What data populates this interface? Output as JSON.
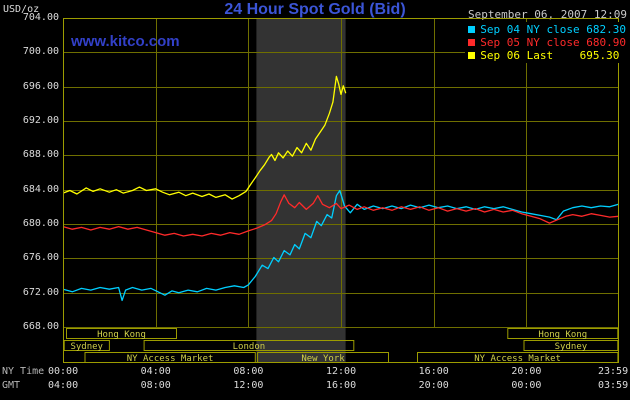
{
  "header": {
    "units": "USD/oz",
    "title": "24 Hour Spot Gold (Bid)",
    "datetime": "September 06, 2007 12:09"
  },
  "watermark": "www.kitco.com",
  "axis": {
    "ny_time_label": "NY Time",
    "gmt_label": "GMT",
    "y_ticks": [
      "704.00",
      "700.00",
      "696.00",
      "692.00",
      "688.00",
      "684.00",
      "680.00",
      "676.00",
      "672.00",
      "668.00"
    ],
    "ny_ticks": [
      "00:00",
      "04:00",
      "08:00",
      "12:00",
      "16:00",
      "20:00",
      "23:59"
    ],
    "gmt_ticks": [
      "04:00",
      "08:00",
      "12:00",
      "16:00",
      "20:00",
      "00:00",
      "03:59"
    ]
  },
  "legend": [
    {
      "id": "sep04",
      "label": "Sep 04 NY close 682.30",
      "color": "#00CFFF"
    },
    {
      "id": "sep05",
      "label": "Sep 05 NY close 680.90",
      "color": "#FF2A2A"
    },
    {
      "id": "sep06",
      "label": "Sep 06 Last    695.30",
      "color": "#FFFF00"
    }
  ],
  "sessions": {
    "rows": [
      {
        "row": 0,
        "label": "Hong Kong",
        "start": 0.15,
        "end": 4.9
      },
      {
        "row": 0,
        "label": "Hong Kong",
        "start": 19.2,
        "end": 23.95
      },
      {
        "row": 1,
        "label": "Sydney",
        "start": 0.05,
        "end": 2.0
      },
      {
        "row": 1,
        "label": "London",
        "start": 3.5,
        "end": 12.55
      },
      {
        "row": 1,
        "label": "Sydney",
        "start": 19.9,
        "end": 23.95
      },
      {
        "row": 2,
        "label": "NY Access Market",
        "start": 0.95,
        "end": 8.3
      },
      {
        "row": 2,
        "label": "New York",
        "start": 8.4,
        "end": 14.05
      },
      {
        "row": 2,
        "label": "NY Access Market",
        "start": 15.3,
        "end": 23.95
      }
    ]
  },
  "colors": {
    "background": "#000000",
    "title_blue": "#3B55D6",
    "watermark_blue": "#3240C8",
    "grid_olive": "#6F6F00",
    "border_olive": "#9C9C00",
    "session_text": "#CFCF4A",
    "axis_text": "#DCDCDC",
    "muted_text": "#B6B6B6",
    "highlight_band": "#333333"
  },
  "chart_data": {
    "type": "line",
    "title": "24 Hour Spot Gold (Bid)",
    "xlabel": "NY Time",
    "ylabel": "USD/oz",
    "xlim_hours": [
      0,
      24
    ],
    "ylim": [
      668,
      704
    ],
    "y_gridlines": [
      704,
      700,
      696,
      692,
      688,
      684,
      680,
      676,
      672,
      668
    ],
    "x_gridlines_hours": [
      4,
      8,
      12,
      16,
      20
    ],
    "highlight_band_hours": [
      8.35,
      12.2
    ],
    "legend_position": "top-right",
    "series": [
      {
        "id": "sep04",
        "name": "Sep 04 NY close 682.30",
        "color": "#00CFFF",
        "close": 682.3,
        "points": [
          [
            0,
            672.4
          ],
          [
            0.4,
            672.1
          ],
          [
            0.8,
            672.5
          ],
          [
            1.2,
            672.3
          ],
          [
            1.6,
            672.6
          ],
          [
            2,
            672.4
          ],
          [
            2.4,
            672.6
          ],
          [
            2.55,
            671.1
          ],
          [
            2.7,
            672.3
          ],
          [
            3,
            672.6
          ],
          [
            3.4,
            672.3
          ],
          [
            3.8,
            672.5
          ],
          [
            4.1,
            672.1
          ],
          [
            4.4,
            671.7
          ],
          [
            4.7,
            672.2
          ],
          [
            5,
            672
          ],
          [
            5.4,
            672.3
          ],
          [
            5.8,
            672.1
          ],
          [
            6.2,
            672.5
          ],
          [
            6.6,
            672.3
          ],
          [
            7,
            672.6
          ],
          [
            7.4,
            672.8
          ],
          [
            7.8,
            672.6
          ],
          [
            8,
            672.9
          ],
          [
            8.3,
            673.9
          ],
          [
            8.6,
            675.2
          ],
          [
            8.85,
            674.8
          ],
          [
            9.1,
            676.1
          ],
          [
            9.3,
            675.6
          ],
          [
            9.55,
            676.9
          ],
          [
            9.8,
            676.4
          ],
          [
            10,
            677.6
          ],
          [
            10.2,
            677.1
          ],
          [
            10.45,
            678.9
          ],
          [
            10.7,
            678.4
          ],
          [
            10.95,
            680.3
          ],
          [
            11.15,
            679.8
          ],
          [
            11.4,
            681.1
          ],
          [
            11.6,
            680.7
          ],
          [
            11.8,
            683.3
          ],
          [
            11.95,
            683.9
          ],
          [
            12.15,
            682.1
          ],
          [
            12.4,
            681.3
          ],
          [
            12.7,
            682.3
          ],
          [
            13,
            681.7
          ],
          [
            13.4,
            682.1
          ],
          [
            13.8,
            681.8
          ],
          [
            14.2,
            682.1
          ],
          [
            14.6,
            681.8
          ],
          [
            15,
            682.2
          ],
          [
            15.4,
            681.9
          ],
          [
            15.8,
            682.2
          ],
          [
            16.2,
            681.9
          ],
          [
            16.6,
            682.1
          ],
          [
            17,
            681.8
          ],
          [
            17.4,
            682
          ],
          [
            17.8,
            681.7
          ],
          [
            18.2,
            682
          ],
          [
            18.6,
            681.8
          ],
          [
            19,
            682
          ],
          [
            19.4,
            681.7
          ],
          [
            19.8,
            681.4
          ],
          [
            20.2,
            681.2
          ],
          [
            20.6,
            681
          ],
          [
            21,
            680.8
          ],
          [
            21.3,
            680.5
          ],
          [
            21.6,
            681.5
          ],
          [
            22,
            681.9
          ],
          [
            22.4,
            682.1
          ],
          [
            22.8,
            681.9
          ],
          [
            23.2,
            682.1
          ],
          [
            23.6,
            682
          ],
          [
            23.98,
            682.3
          ]
        ]
      },
      {
        "id": "sep05",
        "name": "Sep 05 NY close 680.90",
        "color": "#FF2A2A",
        "close": 680.9,
        "points": [
          [
            0,
            679.7
          ],
          [
            0.4,
            679.4
          ],
          [
            0.8,
            679.6
          ],
          [
            1.2,
            679.3
          ],
          [
            1.6,
            679.6
          ],
          [
            2,
            679.4
          ],
          [
            2.4,
            679.7
          ],
          [
            2.8,
            679.4
          ],
          [
            3.2,
            679.6
          ],
          [
            3.6,
            679.3
          ],
          [
            4,
            679
          ],
          [
            4.4,
            678.7
          ],
          [
            4.8,
            678.9
          ],
          [
            5.2,
            678.6
          ],
          [
            5.6,
            678.8
          ],
          [
            6,
            678.6
          ],
          [
            6.4,
            678.9
          ],
          [
            6.8,
            678.7
          ],
          [
            7.2,
            679
          ],
          [
            7.6,
            678.8
          ],
          [
            8,
            679.2
          ],
          [
            8.35,
            679.5
          ],
          [
            8.7,
            679.9
          ],
          [
            9,
            680.4
          ],
          [
            9.2,
            681.2
          ],
          [
            9.4,
            682.6
          ],
          [
            9.55,
            683.4
          ],
          [
            9.75,
            682.4
          ],
          [
            10,
            681.9
          ],
          [
            10.2,
            682.5
          ],
          [
            10.5,
            681.7
          ],
          [
            10.8,
            682.4
          ],
          [
            11,
            683.3
          ],
          [
            11.2,
            682.3
          ],
          [
            11.5,
            681.9
          ],
          [
            11.8,
            682.4
          ],
          [
            12,
            681.8
          ],
          [
            12.35,
            682.2
          ],
          [
            12.7,
            681.7
          ],
          [
            13,
            682
          ],
          [
            13.4,
            681.6
          ],
          [
            13.8,
            681.9
          ],
          [
            14.2,
            681.6
          ],
          [
            14.6,
            682
          ],
          [
            15,
            681.7
          ],
          [
            15.4,
            682
          ],
          [
            15.8,
            681.6
          ],
          [
            16.2,
            681.9
          ],
          [
            16.6,
            681.5
          ],
          [
            17,
            681.8
          ],
          [
            17.4,
            681.5
          ],
          [
            17.8,
            681.8
          ],
          [
            18.2,
            681.4
          ],
          [
            18.6,
            681.7
          ],
          [
            19,
            681.4
          ],
          [
            19.4,
            681.6
          ],
          [
            19.8,
            681.2
          ],
          [
            20.2,
            680.9
          ],
          [
            20.6,
            680.6
          ],
          [
            21,
            680.1
          ],
          [
            21.35,
            680.5
          ],
          [
            21.7,
            680.9
          ],
          [
            22,
            681.1
          ],
          [
            22.4,
            680.9
          ],
          [
            22.8,
            681.2
          ],
          [
            23.2,
            681
          ],
          [
            23.6,
            680.8
          ],
          [
            23.98,
            680.9
          ]
        ]
      },
      {
        "id": "sep06",
        "name": "Sep 06 Last 695.30",
        "color": "#FFFF00",
        "last": 695.3,
        "points": [
          [
            0,
            683.6
          ],
          [
            0.3,
            683.9
          ],
          [
            0.6,
            683.5
          ],
          [
            1,
            684.2
          ],
          [
            1.3,
            683.8
          ],
          [
            1.6,
            684.1
          ],
          [
            2,
            683.7
          ],
          [
            2.3,
            684
          ],
          [
            2.6,
            683.6
          ],
          [
            3,
            683.9
          ],
          [
            3.3,
            684.3
          ],
          [
            3.6,
            683.9
          ],
          [
            4,
            684.1
          ],
          [
            4.3,
            683.7
          ],
          [
            4.6,
            683.4
          ],
          [
            5,
            683.7
          ],
          [
            5.3,
            683.3
          ],
          [
            5.6,
            683.6
          ],
          [
            6,
            683.2
          ],
          [
            6.3,
            683.5
          ],
          [
            6.6,
            683.1
          ],
          [
            7,
            683.4
          ],
          [
            7.3,
            682.9
          ],
          [
            7.6,
            683.3
          ],
          [
            7.9,
            683.8
          ],
          [
            8.1,
            684.6
          ],
          [
            8.3,
            685.4
          ],
          [
            8.5,
            686.2
          ],
          [
            8.7,
            686.9
          ],
          [
            8.9,
            687.8
          ],
          [
            9,
            688.1
          ],
          [
            9.15,
            687.4
          ],
          [
            9.3,
            688.3
          ],
          [
            9.5,
            687.7
          ],
          [
            9.7,
            688.5
          ],
          [
            9.9,
            687.9
          ],
          [
            10.1,
            688.9
          ],
          [
            10.3,
            688.3
          ],
          [
            10.5,
            689.4
          ],
          [
            10.7,
            688.6
          ],
          [
            10.9,
            689.9
          ],
          [
            11.1,
            690.7
          ],
          [
            11.3,
            691.5
          ],
          [
            11.5,
            692.9
          ],
          [
            11.65,
            694.2
          ],
          [
            11.8,
            697.2
          ],
          [
            11.9,
            696.3
          ],
          [
            12,
            695.1
          ],
          [
            12.1,
            696.1
          ],
          [
            12.2,
            695.3
          ]
        ]
      }
    ]
  }
}
